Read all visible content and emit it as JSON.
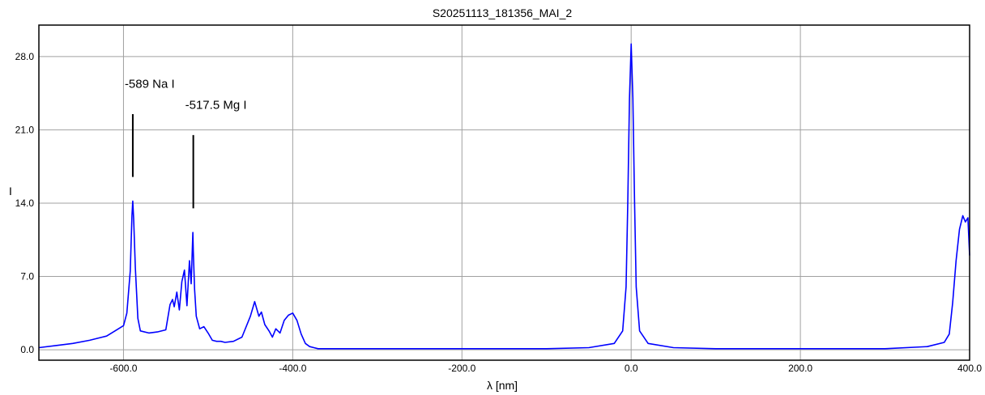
{
  "chart_data": {
    "type": "line",
    "title": "S20251113_181356_MAI_2",
    "xlabel": "λ [nm]",
    "ylabel": "I",
    "xlim": [
      -700,
      400
    ],
    "ylim": [
      -1,
      31
    ],
    "x_ticks": [
      -600,
      -400,
      -200,
      0,
      200,
      400
    ],
    "x_tick_labels": [
      "-600.0",
      "-400.0",
      "-200.0",
      "0.0",
      "200.0",
      "400.0"
    ],
    "y_ticks": [
      0,
      7,
      14,
      21,
      28
    ],
    "y_tick_labels": [
      "0.0",
      "7.0",
      "14.0",
      "21.0",
      "28.0"
    ],
    "grid": true,
    "series_color": "#0000ff",
    "annotations": [
      {
        "text": "-589 Na I",
        "x": -589,
        "y_from": 16.5,
        "y_to": 22.5,
        "text_y": 25
      },
      {
        "text": "-517.5 Mg I",
        "x": -517.5,
        "y_from": 13.5,
        "y_to": 20.5,
        "text_y": 23
      }
    ],
    "series": [
      {
        "x": [
          -700,
          -680,
          -660,
          -640,
          -620,
          -610,
          -600,
          -596,
          -592,
          -590,
          -589,
          -588,
          -586,
          -583,
          -580,
          -570,
          -560,
          -550,
          -545,
          -542,
          -540,
          -537,
          -534,
          -531,
          -528,
          -525,
          -522,
          -520,
          -518,
          -517.5,
          -516,
          -514,
          -510,
          -505,
          -500,
          -495,
          -490,
          -485,
          -480,
          -470,
          -460,
          -450,
          -445,
          -440,
          -437,
          -433,
          -428,
          -424,
          -420,
          -415,
          -410,
          -405,
          -400,
          -395,
          -390,
          -385,
          -380,
          -375,
          -370,
          -360,
          -300,
          -200,
          -100,
          -50,
          -20,
          -10,
          -6,
          -4,
          -2,
          0,
          2,
          4,
          6,
          10,
          20,
          50,
          100,
          200,
          300,
          350,
          370,
          376,
          380,
          384,
          388,
          392,
          395,
          398,
          400
        ],
        "y": [
          0.2,
          0.4,
          0.6,
          0.9,
          1.3,
          1.8,
          2.3,
          3.5,
          7.5,
          12.8,
          14.2,
          12.5,
          7.8,
          3.0,
          1.8,
          1.6,
          1.7,
          1.9,
          4.3,
          4.8,
          4.1,
          5.5,
          3.8,
          6.5,
          7.6,
          4.2,
          8.5,
          6.3,
          11.2,
          9.5,
          5.8,
          3.2,
          2.0,
          2.2,
          1.6,
          0.9,
          0.8,
          0.8,
          0.7,
          0.8,
          1.2,
          3.2,
          4.6,
          3.2,
          3.6,
          2.4,
          1.8,
          1.2,
          2.0,
          1.6,
          2.8,
          3.3,
          3.5,
          2.8,
          1.5,
          0.6,
          0.3,
          0.2,
          0.1,
          0.1,
          0.1,
          0.1,
          0.1,
          0.2,
          0.6,
          1.8,
          6.0,
          14.0,
          24.0,
          29.2,
          24.0,
          14.0,
          6.0,
          1.8,
          0.6,
          0.2,
          0.1,
          0.1,
          0.1,
          0.3,
          0.7,
          1.5,
          4.5,
          8.5,
          11.5,
          12.8,
          12.2,
          12.6,
          9.0
        ]
      }
    ]
  }
}
